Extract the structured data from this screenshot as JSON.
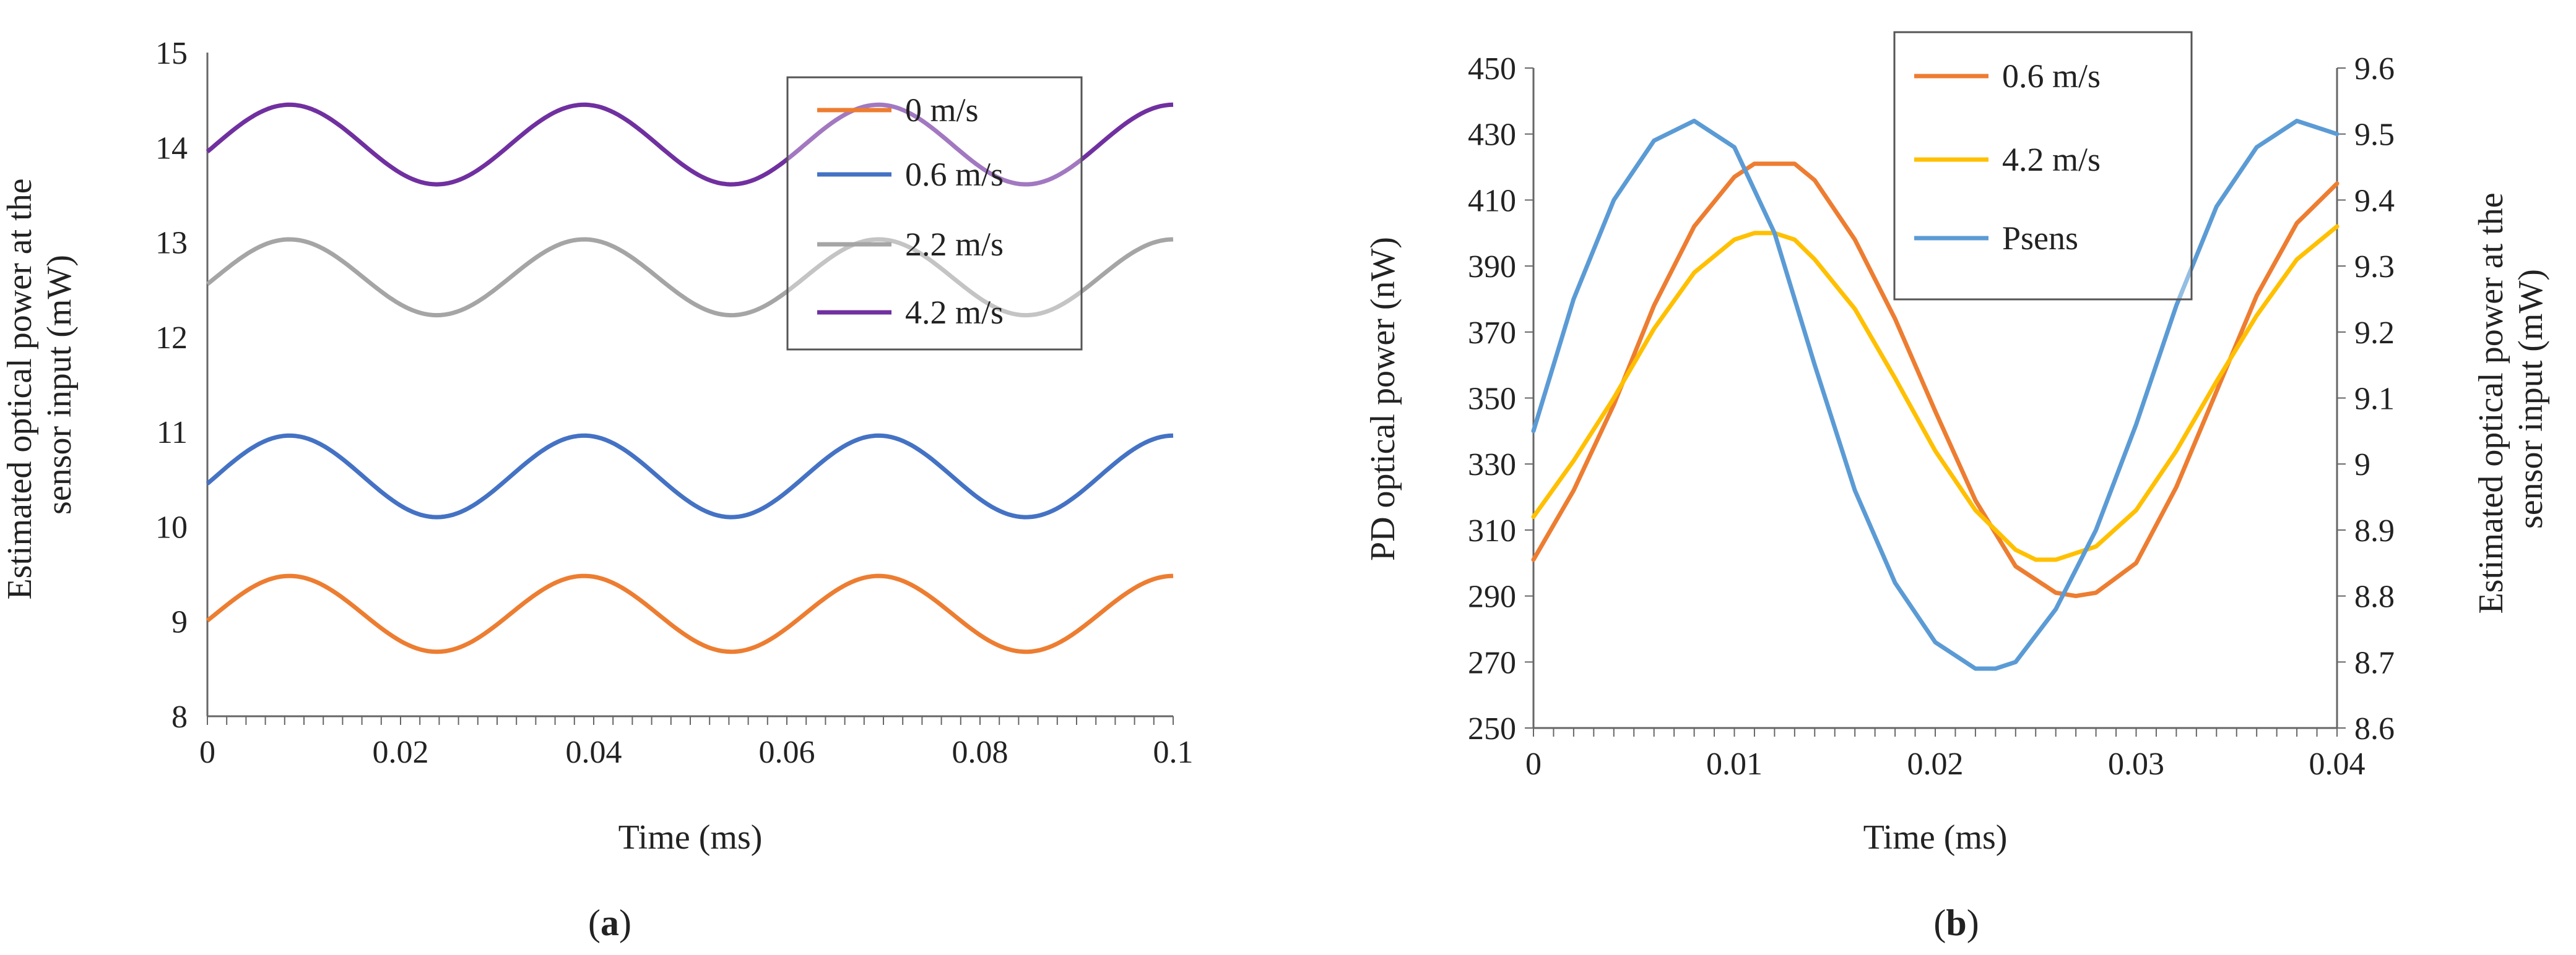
{
  "chart_data": [
    {
      "id": "a",
      "type": "line",
      "caption": {
        "open": "(",
        "letter": "a",
        "close": ")"
      },
      "xlabel": "Time (ms)",
      "ylabel_lines": [
        "Estimated optical power at the",
        "sensor input (mW)"
      ],
      "xlim": [
        0,
        0.1
      ],
      "ylim": [
        8,
        15
      ],
      "xticks": [
        0,
        0.02,
        0.04,
        0.06,
        0.08,
        0.1
      ],
      "xtick_labels": [
        "0",
        "0.02",
        "0.04",
        "0.06",
        "0.08",
        "0.1"
      ],
      "yticks": [
        8,
        9,
        10,
        11,
        12,
        13,
        14,
        15
      ],
      "ytick_labels": [
        "8",
        "9",
        "10",
        "11",
        "12",
        "13",
        "14",
        "15"
      ],
      "legend": "top-right",
      "series": [
        {
          "name": "0 m/s",
          "color": "#ED7D31",
          "mean": 9.08,
          "amplitude": 0.4,
          "period": 0.0305,
          "peak_x": 0.0085
        },
        {
          "name": "0.6 m/s",
          "color": "#4472C4",
          "mean": 10.53,
          "amplitude": 0.43,
          "period": 0.0305,
          "peak_x": 0.0085
        },
        {
          "name": "2.2 m/s",
          "color": "#A5A5A5",
          "mean": 12.63,
          "amplitude": 0.4,
          "period": 0.0305,
          "peak_x": 0.0085
        },
        {
          "name": "4.2 m/s",
          "color": "#7030A0",
          "mean": 14.03,
          "amplitude": 0.42,
          "period": 0.0305,
          "peak_x": 0.0085
        }
      ]
    },
    {
      "id": "b",
      "type": "line",
      "caption": {
        "open": "(",
        "letter": "b",
        "close": ")"
      },
      "xlabel": "Time (ms)",
      "ylabel": "PD optical power (nW)",
      "y2label_lines": [
        "Estimated optical power at the",
        "sensor input (mW)"
      ],
      "xlim": [
        0,
        0.04
      ],
      "ylim": [
        250,
        450
      ],
      "y2lim": [
        8.6,
        9.6
      ],
      "xticks": [
        0,
        0.01,
        0.02,
        0.03,
        0.04
      ],
      "xtick_labels": [
        "0",
        "0.01",
        "0.02",
        "0.03",
        "0.04"
      ],
      "yticks": [
        250,
        270,
        290,
        310,
        330,
        350,
        370,
        390,
        410,
        430,
        450
      ],
      "ytick_labels": [
        "250",
        "270",
        "290",
        "310",
        "330",
        "350",
        "370",
        "390",
        "410",
        "430",
        "450"
      ],
      "y2ticks": [
        8.6,
        8.7,
        8.8,
        8.9,
        9.0,
        9.1,
        9.2,
        9.3,
        9.4,
        9.5,
        9.6
      ],
      "y2tick_labels": [
        "8.6",
        "8.7",
        "8.8",
        "8.9",
        "9",
        "9.1",
        "9.2",
        "9.3",
        "9.4",
        "9.5",
        "9.6"
      ],
      "legend": "top-center",
      "series": [
        {
          "name": "0.6 m/s",
          "color": "#ED7D31",
          "axis": "left",
          "x": [
            0,
            0.002,
            0.004,
            0.006,
            0.008,
            0.01,
            0.011,
            0.012,
            0.013,
            0.014,
            0.016,
            0.018,
            0.02,
            0.022,
            0.024,
            0.026,
            0.027,
            0.028,
            0.03,
            0.032,
            0.034,
            0.036,
            0.038,
            0.04
          ],
          "y": [
            301,
            322,
            348,
            378,
            402,
            417,
            421,
            421,
            421,
            416,
            398,
            374,
            346,
            319,
            299,
            291,
            290,
            291,
            300,
            323,
            352,
            381,
            403,
            415
          ]
        },
        {
          "name": "4.2 m/s",
          "color": "#FFC000",
          "axis": "left",
          "x": [
            0,
            0.002,
            0.004,
            0.006,
            0.008,
            0.01,
            0.011,
            0.012,
            0.013,
            0.014,
            0.016,
            0.018,
            0.02,
            0.022,
            0.024,
            0.025,
            0.026,
            0.028,
            0.03,
            0.032,
            0.034,
            0.036,
            0.038,
            0.04
          ],
          "y": [
            314,
            331,
            350,
            371,
            388,
            398,
            400,
            400,
            398,
            392,
            377,
            356,
            334,
            316,
            304,
            301,
            301,
            305,
            316,
            334,
            355,
            375,
            392,
            402
          ]
        },
        {
          "name": "Psens",
          "color": "#5B9BD5",
          "axis": "right",
          "x": [
            0,
            0.002,
            0.004,
            0.006,
            0.008,
            0.01,
            0.012,
            0.014,
            0.016,
            0.018,
            0.02,
            0.022,
            0.023,
            0.024,
            0.026,
            0.028,
            0.03,
            0.032,
            0.034,
            0.036,
            0.038,
            0.04
          ],
          "y": [
            9.05,
            9.25,
            9.4,
            9.49,
            9.52,
            9.48,
            9.35,
            9.15,
            8.96,
            8.82,
            8.73,
            8.69,
            8.69,
            8.7,
            8.78,
            8.9,
            9.06,
            9.24,
            9.39,
            9.48,
            9.52,
            9.5
          ]
        }
      ]
    }
  ]
}
